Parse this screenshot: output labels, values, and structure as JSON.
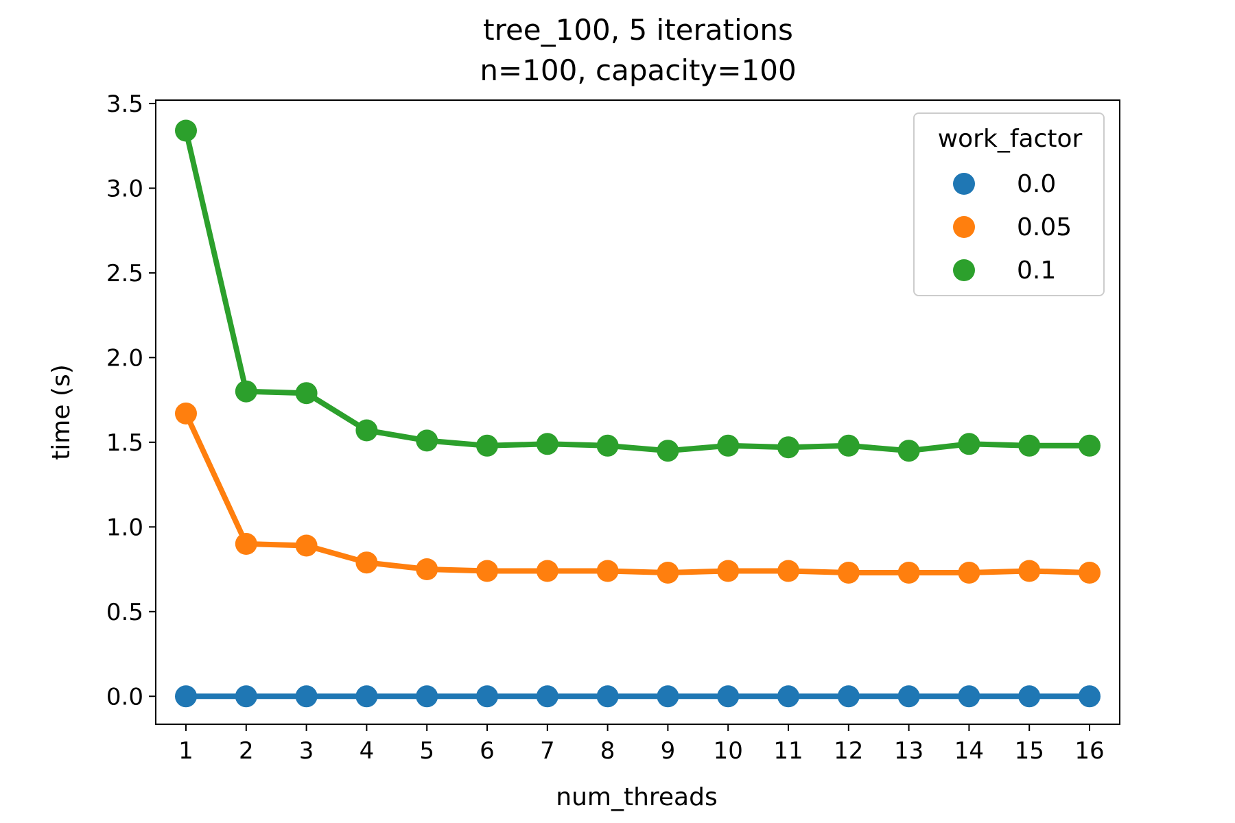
{
  "chart_data": {
    "type": "line",
    "title": "tree_100, 5 iterations",
    "subtitle": "n=100, capacity=100",
    "xlabel": "num_threads",
    "ylabel": "time (s)",
    "categories": [
      "1",
      "2",
      "3",
      "4",
      "5",
      "6",
      "7",
      "8",
      "9",
      "10",
      "11",
      "12",
      "13",
      "14",
      "15",
      "16"
    ],
    "yticks": [
      "0.0",
      "0.5",
      "1.0",
      "1.5",
      "2.0",
      "2.5",
      "3.0",
      "3.5"
    ],
    "ylim": [
      -0.165,
      3.52
    ],
    "grid": false,
    "legend": {
      "title": "work_factor",
      "placement": "top-right"
    },
    "series": [
      {
        "name": "0.0",
        "color": "#1f77b4",
        "values": [
          0.0,
          0.0,
          0.0,
          0.0,
          0.0,
          0.0,
          0.0,
          0.0,
          0.0,
          0.0,
          0.0,
          0.0,
          0.0,
          0.0,
          0.0,
          0.0
        ]
      },
      {
        "name": "0.05",
        "color": "#ff7f0e",
        "values": [
          1.67,
          0.9,
          0.89,
          0.79,
          0.75,
          0.74,
          0.74,
          0.74,
          0.73,
          0.74,
          0.74,
          0.73,
          0.73,
          0.73,
          0.74,
          0.73
        ]
      },
      {
        "name": "0.1",
        "color": "#2ca02c",
        "values": [
          3.34,
          1.8,
          1.79,
          1.57,
          1.51,
          1.48,
          1.49,
          1.48,
          1.45,
          1.48,
          1.47,
          1.48,
          1.45,
          1.49,
          1.48,
          1.48
        ]
      }
    ]
  }
}
